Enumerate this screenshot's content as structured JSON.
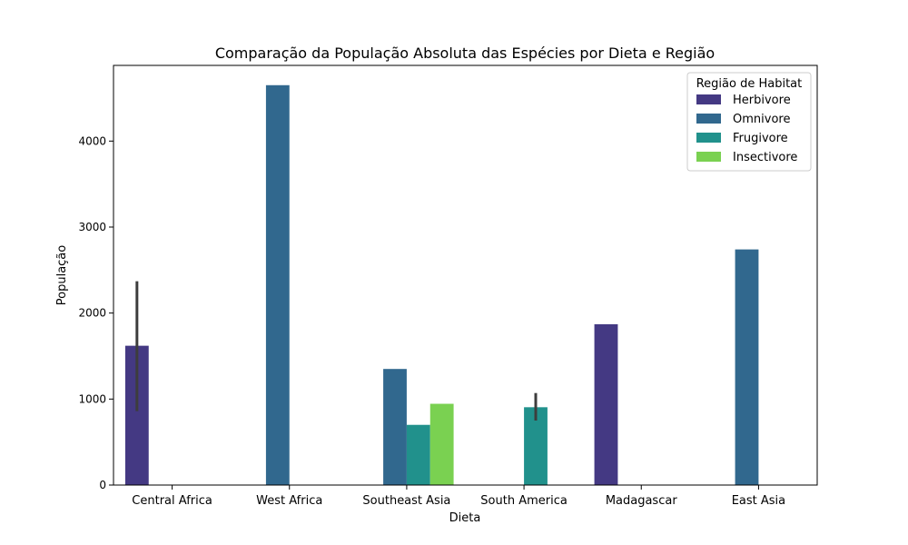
{
  "chart_data": {
    "type": "bar",
    "title": "Comparação da População Absoluta das Espécies por Dieta e Região",
    "xlabel": "Dieta",
    "ylabel": "População",
    "ylim": [
      0,
      4880
    ],
    "yticks": [
      0,
      1000,
      2000,
      3000,
      4000
    ],
    "categories": [
      "Central Africa",
      "West Africa",
      "Southeast Asia",
      "South America",
      "Madagascar",
      "East Asia"
    ],
    "legend": {
      "title": "Região de Habitat",
      "placement": "top-right"
    },
    "series": [
      {
        "name": "Herbivore",
        "color": "#443983",
        "values": [
          1620,
          null,
          null,
          null,
          1870,
          null
        ],
        "error": [
          [
            860,
            2370
          ],
          null,
          null,
          null,
          null,
          null
        ]
      },
      {
        "name": "Omnivore",
        "color": "#31688e",
        "values": [
          null,
          4650,
          1350,
          null,
          null,
          2740
        ],
        "error": [
          null,
          null,
          null,
          null,
          null,
          null
        ]
      },
      {
        "name": "Frugivore",
        "color": "#21918c",
        "values": [
          null,
          null,
          700,
          905,
          null,
          null
        ],
        "error": [
          null,
          null,
          null,
          [
            750,
            1070
          ],
          null,
          null
        ]
      },
      {
        "name": "Insectivore",
        "color": "#7ad151",
        "values": [
          null,
          null,
          945,
          null,
          null,
          null
        ],
        "error": [
          null,
          null,
          null,
          null,
          null,
          null
        ]
      }
    ],
    "grid": false
  }
}
